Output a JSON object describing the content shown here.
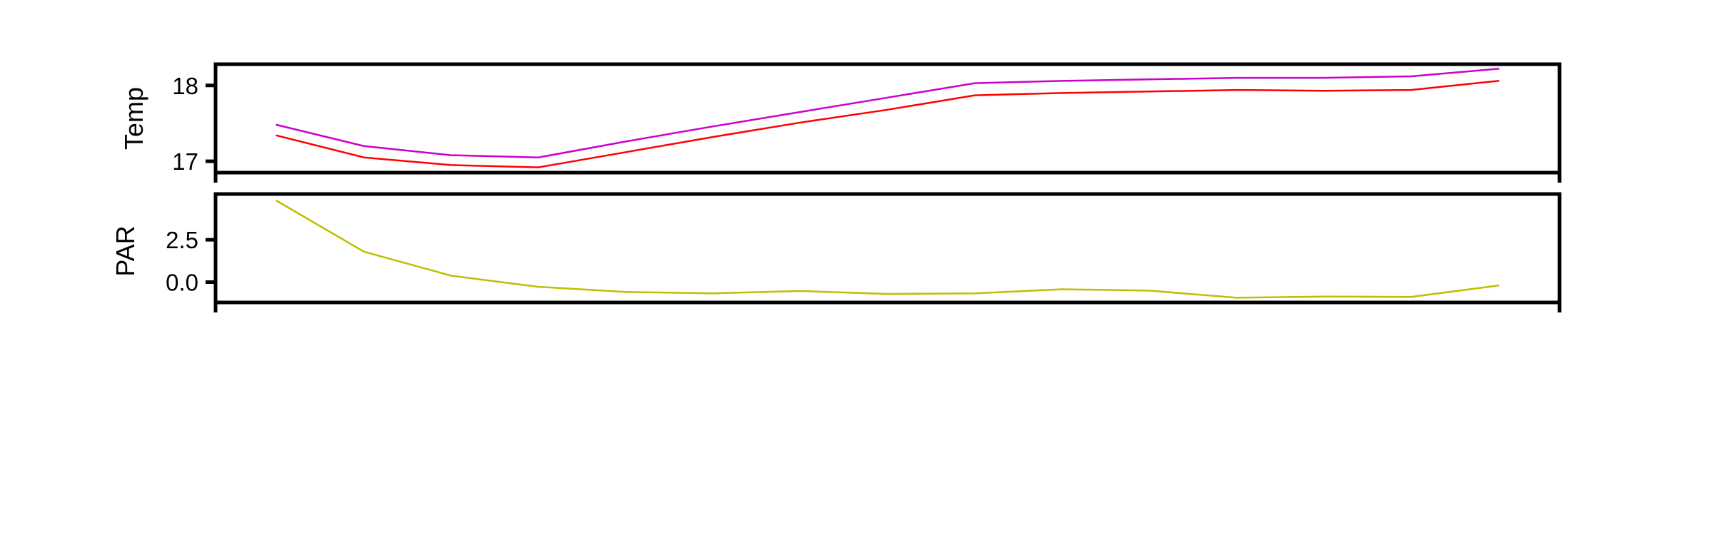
{
  "chart_data": [
    {
      "type": "line",
      "ylabel": "Temp",
      "ylim": [
        16.85,
        18.28
      ],
      "yticks": [
        "17",
        "18"
      ],
      "x": [
        1,
        2,
        3,
        4,
        5,
        6,
        7,
        8,
        9,
        10,
        11,
        12,
        13,
        14,
        15
      ],
      "xlim": [
        0.3,
        15.7
      ],
      "series": [
        {
          "color": "#cc00cc",
          "values": [
            17.48,
            17.2,
            17.08,
            17.05,
            17.26,
            17.46,
            17.65,
            17.84,
            18.03,
            18.06,
            18.08,
            18.1,
            18.1,
            18.12,
            18.22
          ]
        },
        {
          "color": "#ff0000",
          "values": [
            17.34,
            17.05,
            16.95,
            16.92,
            17.12,
            17.32,
            17.51,
            17.68,
            17.87,
            17.9,
            17.92,
            17.94,
            17.93,
            17.94,
            18.06
          ]
        }
      ],
      "grid": false
    },
    {
      "type": "line",
      "ylabel": "PAR",
      "ylim": [
        -1.2,
        5.2
      ],
      "yticks": [
        "0.0",
        "2.5"
      ],
      "x": [
        1,
        2,
        3,
        4,
        5,
        6,
        7,
        8,
        9,
        10,
        11,
        12,
        13,
        14,
        15
      ],
      "xlim": [
        0.3,
        15.7
      ],
      "series": [
        {
          "color": "#bfbf00",
          "values": [
            4.8,
            1.8,
            0.38,
            -0.28,
            -0.58,
            -0.66,
            -0.52,
            -0.7,
            -0.66,
            -0.42,
            -0.5,
            -0.92,
            -0.85,
            -0.87,
            -0.2
          ]
        }
      ],
      "grid": false
    }
  ]
}
